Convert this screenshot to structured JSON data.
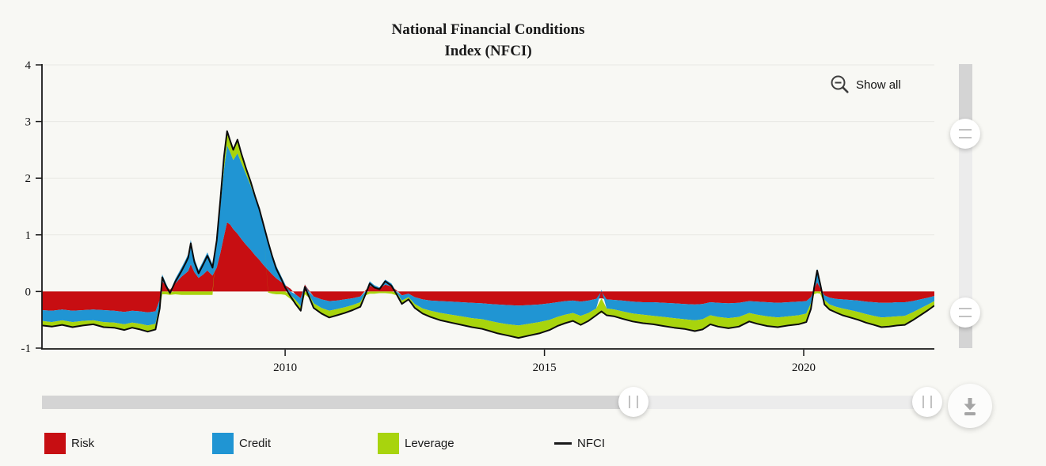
{
  "header": {
    "title_line1": "National Financial Conditions",
    "title_line2": "Index (NFCI)"
  },
  "toolbar": {
    "show_all_label": "Show all",
    "zoom_out_icon": "magnifier-minus-icon",
    "download_icon": "download-icon"
  },
  "legend": {
    "items": [
      {
        "label": "Risk",
        "color": "#c70e12",
        "type": "area"
      },
      {
        "label": "Credit",
        "color": "#2095d3",
        "type": "area"
      },
      {
        "label": "Leverage",
        "color": "#a8d40d",
        "type": "area"
      },
      {
        "label": "NFCI",
        "color": "#1a1a1a",
        "type": "line"
      }
    ]
  },
  "colors": {
    "background": "#f8f8f4",
    "grid": "#e9e9e4",
    "axis": "#1a1a1a",
    "scrollbar_track": "#d4d4d4",
    "scrollbar_selected": "#ececec"
  },
  "chart_data": {
    "type": "area",
    "stacked": true,
    "title": "National Financial Conditions Index (NFCI)",
    "xlabel": "",
    "ylabel": "",
    "x_ticks": [
      2010,
      2015,
      2020
    ],
    "y_ticks": [
      4,
      3,
      2,
      1,
      0,
      -1
    ],
    "xlim": [
      2005.31,
      2022.52
    ],
    "ylim": [
      -1,
      4
    ],
    "grid": true,
    "legend_position": "bottom",
    "series": [
      {
        "name": "Risk",
        "color": "#c70e12"
      },
      {
        "name": "Credit",
        "color": "#2095d3"
      },
      {
        "name": "Leverage",
        "color": "#a8d40d"
      }
    ],
    "line_series": {
      "name": "NFCI",
      "color": "#000000"
    },
    "point_format": [
      "year",
      "risk",
      "credit",
      "leverage",
      "nfci"
    ],
    "points": [
      [
        2005.31,
        -0.33,
        -0.19,
        -0.08,
        -0.6
      ],
      [
        2005.5,
        -0.34,
        -0.2,
        -0.08,
        -0.62
      ],
      [
        2005.7,
        -0.32,
        -0.19,
        -0.08,
        -0.59
      ],
      [
        2005.9,
        -0.34,
        -0.2,
        -0.09,
        -0.63
      ],
      [
        2006.1,
        -0.33,
        -0.19,
        -0.08,
        -0.6
      ],
      [
        2006.3,
        -0.32,
        -0.19,
        -0.07,
        -0.58
      ],
      [
        2006.5,
        -0.33,
        -0.21,
        -0.09,
        -0.63
      ],
      [
        2006.7,
        -0.34,
        -0.21,
        -0.09,
        -0.64
      ],
      [
        2006.9,
        -0.36,
        -0.22,
        -0.1,
        -0.68
      ],
      [
        2007.05,
        -0.34,
        -0.21,
        -0.09,
        -0.64
      ],
      [
        2007.2,
        -0.35,
        -0.22,
        -0.1,
        -0.67
      ],
      [
        2007.35,
        -0.37,
        -0.23,
        -0.11,
        -0.71
      ],
      [
        2007.5,
        -0.35,
        -0.22,
        -0.1,
        -0.67
      ],
      [
        2007.58,
        -0.15,
        -0.08,
        -0.07,
        -0.3
      ],
      [
        2007.63,
        0.18,
        0.12,
        -0.05,
        0.25
      ],
      [
        2007.7,
        0.1,
        0.05,
        -0.05,
        0.1
      ],
      [
        2007.78,
        0.03,
        -0.01,
        -0.05,
        -0.03
      ],
      [
        2007.88,
        0.14,
        0.08,
        -0.05,
        0.17
      ],
      [
        2008.0,
        0.26,
        0.16,
        -0.06,
        0.36
      ],
      [
        2008.08,
        0.32,
        0.24,
        -0.06,
        0.5
      ],
      [
        2008.13,
        0.36,
        0.3,
        -0.06,
        0.6
      ],
      [
        2008.18,
        0.48,
        0.43,
        -0.06,
        0.85
      ],
      [
        2008.25,
        0.34,
        0.24,
        -0.06,
        0.52
      ],
      [
        2008.33,
        0.24,
        0.14,
        -0.06,
        0.32
      ],
      [
        2008.42,
        0.3,
        0.24,
        -0.06,
        0.48
      ],
      [
        2008.5,
        0.37,
        0.32,
        -0.06,
        0.63
      ],
      [
        2008.6,
        0.28,
        0.2,
        -0.06,
        0.42
      ],
      [
        2008.68,
        0.42,
        0.45,
        0.03,
        0.9
      ],
      [
        2008.75,
        0.68,
        0.82,
        0.12,
        1.62
      ],
      [
        2008.82,
        0.98,
        1.18,
        0.22,
        2.38
      ],
      [
        2008.88,
        1.22,
        1.36,
        0.25,
        2.83
      ],
      [
        2008.94,
        1.18,
        1.28,
        0.2,
        2.66
      ],
      [
        2009.0,
        1.1,
        1.22,
        0.18,
        2.5
      ],
      [
        2009.08,
        1.02,
        1.42,
        0.24,
        2.68
      ],
      [
        2009.16,
        0.92,
        1.34,
        0.16,
        2.42
      ],
      [
        2009.25,
        0.82,
        1.24,
        0.1,
        2.16
      ],
      [
        2009.33,
        0.74,
        1.14,
        0.07,
        1.95
      ],
      [
        2009.42,
        0.64,
        1.0,
        0.04,
        1.68
      ],
      [
        2009.5,
        0.56,
        0.88,
        0.02,
        1.46
      ],
      [
        2009.58,
        0.47,
        0.72,
        0.0,
        1.19
      ],
      [
        2009.67,
        0.38,
        0.52,
        -0.02,
        0.88
      ],
      [
        2009.75,
        0.3,
        0.36,
        -0.04,
        0.62
      ],
      [
        2009.83,
        0.23,
        0.22,
        -0.05,
        0.4
      ],
      [
        2009.92,
        0.17,
        0.11,
        -0.05,
        0.23
      ],
      [
        2010.0,
        0.11,
        0.02,
        -0.06,
        0.07
      ],
      [
        2010.1,
        0.05,
        -0.06,
        -0.07,
        -0.08
      ],
      [
        2010.2,
        -0.05,
        -0.1,
        -0.07,
        -0.22
      ],
      [
        2010.3,
        -0.12,
        -0.14,
        -0.08,
        -0.34
      ],
      [
        2010.38,
        0.12,
        0.01,
        -0.05,
        0.08
      ],
      [
        2010.46,
        0.02,
        -0.05,
        -0.06,
        -0.09
      ],
      [
        2010.55,
        -0.09,
        -0.12,
        -0.08,
        -0.29
      ],
      [
        2010.7,
        -0.14,
        -0.15,
        -0.1,
        -0.39
      ],
      [
        2010.85,
        -0.17,
        -0.17,
        -0.12,
        -0.46
      ],
      [
        2011.0,
        -0.16,
        -0.15,
        -0.11,
        -0.42
      ],
      [
        2011.15,
        -0.14,
        -0.14,
        -0.1,
        -0.38
      ],
      [
        2011.3,
        -0.12,
        -0.12,
        -0.09,
        -0.33
      ],
      [
        2011.45,
        -0.09,
        -0.1,
        -0.08,
        -0.27
      ],
      [
        2011.55,
        0.02,
        -0.02,
        -0.05,
        -0.05
      ],
      [
        2011.63,
        0.1,
        0.08,
        -0.04,
        0.14
      ],
      [
        2011.72,
        0.07,
        0.04,
        -0.04,
        0.07
      ],
      [
        2011.82,
        0.05,
        0.02,
        -0.03,
        0.04
      ],
      [
        2011.93,
        0.12,
        0.09,
        -0.03,
        0.18
      ],
      [
        2012.05,
        0.09,
        0.05,
        -0.04,
        0.1
      ],
      [
        2012.15,
        0.02,
        -0.02,
        -0.05,
        -0.05
      ],
      [
        2012.25,
        -0.07,
        -0.09,
        -0.06,
        -0.22
      ],
      [
        2012.38,
        -0.04,
        -0.06,
        -0.04,
        -0.14
      ],
      [
        2012.5,
        -0.1,
        -0.12,
        -0.07,
        -0.29
      ],
      [
        2012.65,
        -0.14,
        -0.16,
        -0.09,
        -0.39
      ],
      [
        2012.8,
        -0.16,
        -0.18,
        -0.11,
        -0.45
      ],
      [
        2013.0,
        -0.17,
        -0.21,
        -0.13,
        -0.51
      ],
      [
        2013.2,
        -0.18,
        -0.23,
        -0.14,
        -0.55
      ],
      [
        2013.4,
        -0.19,
        -0.25,
        -0.15,
        -0.59
      ],
      [
        2013.6,
        -0.2,
        -0.27,
        -0.16,
        -0.63
      ],
      [
        2013.8,
        -0.21,
        -0.28,
        -0.17,
        -0.66
      ],
      [
        2013.95,
        -0.22,
        -0.3,
        -0.18,
        -0.7
      ],
      [
        2014.1,
        -0.23,
        -0.32,
        -0.19,
        -0.74
      ],
      [
        2014.3,
        -0.24,
        -0.34,
        -0.2,
        -0.78
      ],
      [
        2014.5,
        -0.25,
        -0.35,
        -0.22,
        -0.82
      ],
      [
        2014.7,
        -0.24,
        -0.33,
        -0.21,
        -0.78
      ],
      [
        2014.9,
        -0.23,
        -0.31,
        -0.2,
        -0.74
      ],
      [
        2015.1,
        -0.21,
        -0.29,
        -0.18,
        -0.68
      ],
      [
        2015.25,
        -0.19,
        -0.26,
        -0.16,
        -0.61
      ],
      [
        2015.4,
        -0.17,
        -0.24,
        -0.15,
        -0.56
      ],
      [
        2015.55,
        -0.16,
        -0.22,
        -0.14,
        -0.52
      ],
      [
        2015.7,
        -0.18,
        -0.25,
        -0.16,
        -0.59
      ],
      [
        2015.85,
        -0.16,
        -0.22,
        -0.14,
        -0.52
      ],
      [
        2016.0,
        -0.13,
        -0.17,
        -0.12,
        -0.42
      ],
      [
        2016.1,
        -0.12,
        0.03,
        -0.26,
        -0.35
      ],
      [
        2016.2,
        -0.14,
        -0.16,
        -0.12,
        -0.42
      ],
      [
        2016.35,
        -0.15,
        -0.17,
        -0.12,
        -0.44
      ],
      [
        2016.5,
        -0.16,
        -0.19,
        -0.13,
        -0.48
      ],
      [
        2016.7,
        -0.18,
        -0.21,
        -0.14,
        -0.53
      ],
      [
        2016.9,
        -0.19,
        -0.22,
        -0.15,
        -0.56
      ],
      [
        2017.1,
        -0.19,
        -0.24,
        -0.15,
        -0.58
      ],
      [
        2017.3,
        -0.2,
        -0.25,
        -0.16,
        -0.61
      ],
      [
        2017.5,
        -0.21,
        -0.26,
        -0.17,
        -0.64
      ],
      [
        2017.7,
        -0.22,
        -0.27,
        -0.17,
        -0.66
      ],
      [
        2017.9,
        -0.23,
        -0.28,
        -0.19,
        -0.7
      ],
      [
        2018.05,
        -0.22,
        -0.27,
        -0.18,
        -0.67
      ],
      [
        2018.2,
        -0.19,
        -0.23,
        -0.16,
        -0.58
      ],
      [
        2018.35,
        -0.2,
        -0.25,
        -0.17,
        -0.62
      ],
      [
        2018.55,
        -0.21,
        -0.26,
        -0.18,
        -0.65
      ],
      [
        2018.75,
        -0.2,
        -0.25,
        -0.17,
        -0.62
      ],
      [
        2018.95,
        -0.17,
        -0.21,
        -0.15,
        -0.53
      ],
      [
        2019.1,
        -0.18,
        -0.23,
        -0.16,
        -0.57
      ],
      [
        2019.3,
        -0.19,
        -0.25,
        -0.17,
        -0.61
      ],
      [
        2019.5,
        -0.2,
        -0.26,
        -0.17,
        -0.63
      ],
      [
        2019.7,
        -0.19,
        -0.25,
        -0.16,
        -0.6
      ],
      [
        2019.9,
        -0.18,
        -0.24,
        -0.16,
        -0.58
      ],
      [
        2020.05,
        -0.17,
        -0.22,
        -0.15,
        -0.54
      ],
      [
        2020.14,
        -0.1,
        -0.11,
        -0.1,
        -0.31
      ],
      [
        2020.2,
        0.04,
        0.07,
        -0.05,
        0.06
      ],
      [
        2020.26,
        0.16,
        0.24,
        -0.03,
        0.37
      ],
      [
        2020.32,
        0.06,
        0.11,
        -0.04,
        0.13
      ],
      [
        2020.4,
        -0.07,
        -0.08,
        -0.08,
        -0.23
      ],
      [
        2020.5,
        -0.11,
        -0.12,
        -0.09,
        -0.32
      ],
      [
        2020.62,
        -0.13,
        -0.14,
        -0.1,
        -0.37
      ],
      [
        2020.75,
        -0.14,
        -0.16,
        -0.12,
        -0.42
      ],
      [
        2020.9,
        -0.15,
        -0.18,
        -0.13,
        -0.46
      ],
      [
        2021.05,
        -0.16,
        -0.2,
        -0.14,
        -0.5
      ],
      [
        2021.2,
        -0.18,
        -0.22,
        -0.15,
        -0.55
      ],
      [
        2021.35,
        -0.19,
        -0.24,
        -0.16,
        -0.59
      ],
      [
        2021.5,
        -0.2,
        -0.26,
        -0.17,
        -0.63
      ],
      [
        2021.65,
        -0.2,
        -0.25,
        -0.17,
        -0.62
      ],
      [
        2021.8,
        -0.19,
        -0.25,
        -0.16,
        -0.6
      ],
      [
        2021.95,
        -0.19,
        -0.24,
        -0.16,
        -0.59
      ],
      [
        2022.1,
        -0.17,
        -0.2,
        -0.14,
        -0.51
      ],
      [
        2022.25,
        -0.14,
        -0.16,
        -0.12,
        -0.42
      ],
      [
        2022.4,
        -0.11,
        -0.12,
        -0.1,
        -0.33
      ],
      [
        2022.52,
        -0.08,
        -0.09,
        -0.08,
        -0.25
      ]
    ]
  }
}
